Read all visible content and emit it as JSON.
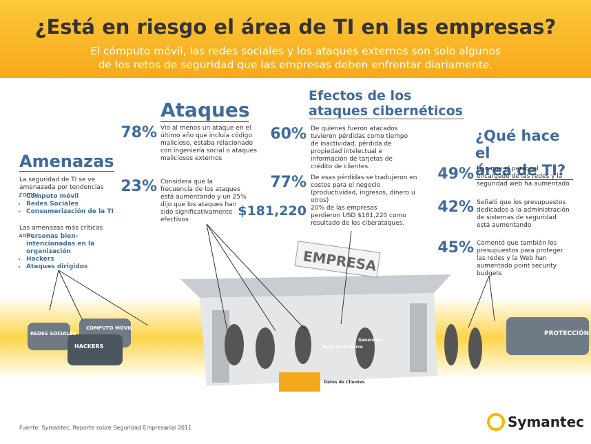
{
  "header": {
    "title": "¿Está en riesgo el área de TI en las empresas?",
    "subtitle_lines": [
      "El cómputo móvil, las redes sociales y los ataques externos son solo algunos",
      "de los retos de seguridad que las empresas deben enfrentar diariamente."
    ]
  },
  "amenazas": {
    "heading": "Amenazas",
    "intro": "La seguridad de TI se ve amenazada por tendencias como:",
    "trends": [
      "Cómputo móvil",
      "Redes Sociales",
      "Consumerización de la TI"
    ],
    "critical_label": "Las amenazas más críticas son:",
    "critical": [
      "Personas bien- intencionadas en la organización",
      "Hackers",
      "Ataques dirigidos"
    ]
  },
  "ataques": {
    "heading": "Ataques",
    "stats": [
      {
        "value": "78%",
        "text": "Vio al menos un ataque en el último año que incluía código malicioso, estaba relacionado con ingeniería social o ataques maliciosos externos"
      },
      {
        "value": "23%",
        "text": "Considera que la frecuencia de los ataques está aumentando y un 25% dijo que los ataques han sido significativamente efectivos"
      }
    ]
  },
  "efectos": {
    "heading_lines": [
      "Efectos de los",
      "ataques cibernéticos"
    ],
    "stats": [
      {
        "value": "60%",
        "text": "De quienes fueron atacados tuvieron pérdidas como tiempo de inactividad, pérdida de propiedad intelectual e información de tarjetas de crédito de clientes."
      },
      {
        "value": "77%",
        "text": "De esas pérdidas se tradujeron en costos para el negocio (productividad, ingresos, dinero u otros)"
      },
      {
        "value": "$181,220",
        "text": "20% de las empresas perdieron USD $181,220 como resultado de los ciberataques."
      }
    ]
  },
  "ti": {
    "heading_lines": [
      "¿Qué hace el",
      "área de TI?"
    ],
    "stats": [
      {
        "value": "49%",
        "text": "Dijo que el personal encargado de las redes y la seguridad web ha aumentado"
      },
      {
        "value": "42%",
        "text": "Señaló que los presupuestos dedicados a la administración de sistemas de seguridad está aumentando"
      },
      {
        "value": "45%",
        "text": "Comentó que también los presupuestos para proteger las redes y la Web han aumentado point security budgets"
      }
    ]
  },
  "illustration": {
    "building": "EMPRESA",
    "van_social": "REDES SOCIALES",
    "van_mobile": "CÓMPUTO MÓVIL",
    "van_hackers": "HACKERS",
    "truck": "PROTECCIÓN",
    "brand_value": "Valor de la Marca",
    "profits": "Ganancias",
    "customer_data": "Datos de Clientes"
  },
  "footer": {
    "source": "Fuente: Symantec, Reporte sobre Seguridad Empresarial 2011",
    "brand": "Symantec"
  }
}
